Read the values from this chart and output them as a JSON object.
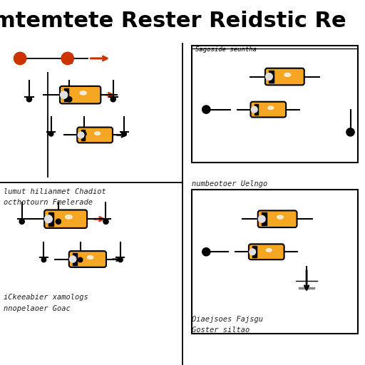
{
  "title": "mtemtete Rester Reidstic Re",
  "title_fontsize": 22,
  "title_fontweight": "bold",
  "background_color": "#ffffff",
  "resistor_color": "#f5a623",
  "resistor_outline": "#000000",
  "divider_color": "#000000",
  "quadrants": [
    {
      "label_line1": "lumut hilianmet Chadiot",
      "label_line2": "octhotourn Fmelerade",
      "has_box": false,
      "arrow_color": "#cc3300"
    },
    {
      "label_line1": "Sagoside seuntha",
      "label_line2": "numbeotoer Uelngo",
      "has_box": true,
      "arrow_color": "#000000"
    },
    {
      "label_line1": "iCkeeabier xamologs",
      "label_line2": "nnopelaoer Goac",
      "has_box": false,
      "arrow_color": "#cc3300"
    },
    {
      "label_line1": "Oiaejsoes Fajsgu",
      "label_line2": "Goster siltao",
      "has_box": true,
      "arrow_color": "#000000"
    }
  ]
}
